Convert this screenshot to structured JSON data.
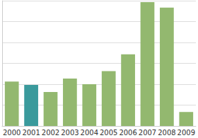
{
  "chart_data": {
    "type": "bar",
    "categories": [
      "2000",
      "2001",
      "2002",
      "2003",
      "2004",
      "2005",
      "2006",
      "2007",
      "2008",
      "2009"
    ],
    "values": [
      2.13,
      1.97,
      1.63,
      2.27,
      2.0,
      2.63,
      3.43,
      5.93,
      5.67,
      0.67
    ],
    "colors": [
      "#93b86f",
      "#3a9a9c",
      "#93b86f",
      "#93b86f",
      "#93b86f",
      "#93b86f",
      "#93b86f",
      "#93b86f",
      "#93b86f",
      "#93b86f"
    ],
    "ylim": [
      0,
      6
    ],
    "yticks": [
      0,
      1,
      2,
      3,
      4,
      5,
      6
    ],
    "grid": true,
    "tick_labels": "x"
  }
}
